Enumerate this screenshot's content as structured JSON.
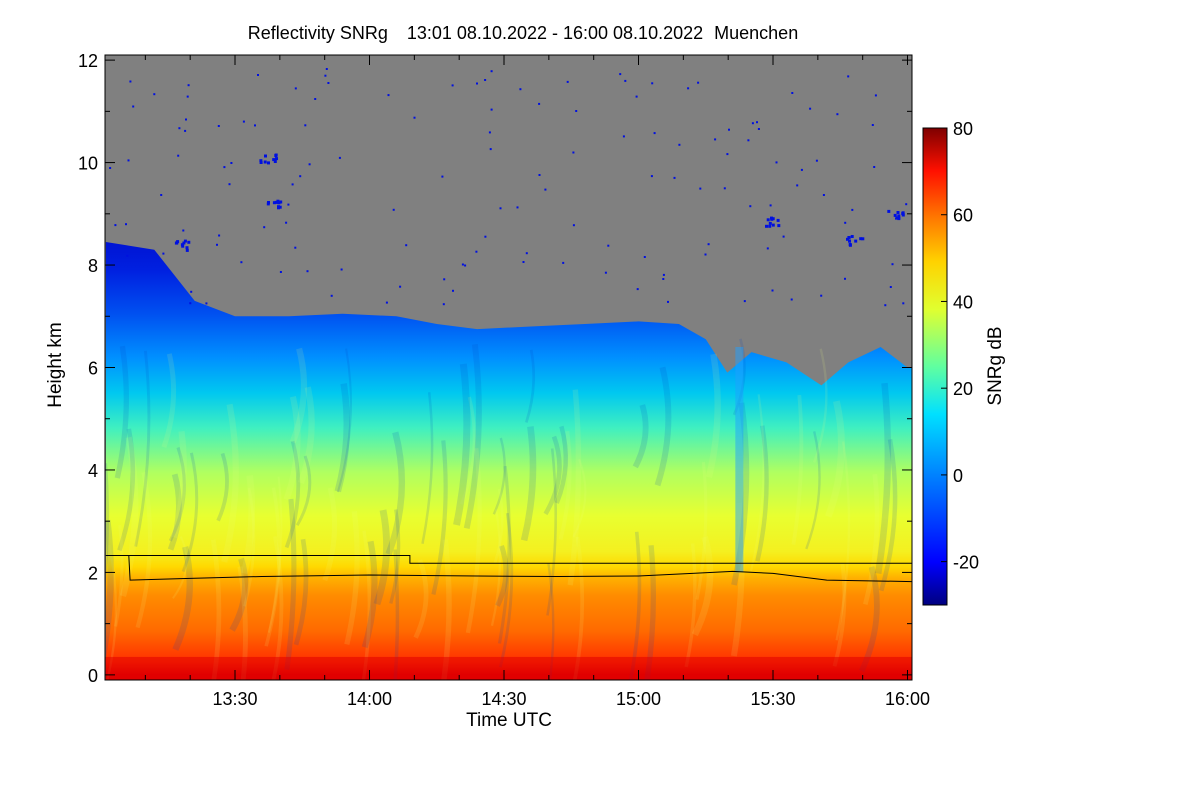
{
  "chart_data": {
    "type": "heatmap",
    "title": "Reflectivity SNRg",
    "time_range": "13:01 08.10.2022 - 16:00 08.10.2022",
    "location": "Muenchen",
    "xlabel": "Time UTC",
    "ylabel": "Height km",
    "x_tick_labels": [
      "13:30",
      "14:00",
      "14:30",
      "15:00",
      "15:30",
      "16:00"
    ],
    "x_tick_hours": [
      13.5,
      14.0,
      14.5,
      15.0,
      15.5,
      16.0
    ],
    "xlim_hours": [
      13.0167,
      16.0167
    ],
    "y_ticks": [
      0,
      2,
      4,
      6,
      8,
      10,
      12
    ],
    "ylim": [
      -0.1,
      12.1
    ],
    "colorbar": {
      "label": "SNRg dB",
      "range": [
        -30,
        80
      ],
      "ticks": [
        -20,
        0,
        20,
        40,
        60,
        80
      ]
    },
    "no_signal_color": "#808080",
    "cloud_top_km": [
      {
        "t": 13.02,
        "h": 8.45
      },
      {
        "t": 13.2,
        "h": 8.3
      },
      {
        "t": 13.35,
        "h": 7.3
      },
      {
        "t": 13.5,
        "h": 7.0
      },
      {
        "t": 13.7,
        "h": 7.0
      },
      {
        "t": 13.9,
        "h": 7.05
      },
      {
        "t": 14.1,
        "h": 7.0
      },
      {
        "t": 14.25,
        "h": 6.85
      },
      {
        "t": 14.4,
        "h": 6.75
      },
      {
        "t": 14.6,
        "h": 6.8
      },
      {
        "t": 14.8,
        "h": 6.85
      },
      {
        "t": 15.0,
        "h": 6.9
      },
      {
        "t": 15.15,
        "h": 6.85
      },
      {
        "t": 15.25,
        "h": 6.55
      },
      {
        "t": 15.33,
        "h": 5.9
      },
      {
        "t": 15.42,
        "h": 6.3
      },
      {
        "t": 15.55,
        "h": 6.1
      },
      {
        "t": 15.68,
        "h": 5.65
      },
      {
        "t": 15.78,
        "h": 6.1
      },
      {
        "t": 15.9,
        "h": 6.4
      },
      {
        "t": 16.0,
        "h": 6.0
      }
    ],
    "series": [
      {
        "name": "stepped reference line",
        "points": [
          {
            "t": 13.02,
            "h": 2.33
          },
          {
            "t": 14.15,
            "h": 2.33
          },
          {
            "t": 14.15,
            "h": 2.18
          },
          {
            "t": 16.02,
            "h": 2.18
          }
        ]
      },
      {
        "name": "melting layer height",
        "points": [
          {
            "t": 13.02,
            "h": 2.33
          },
          {
            "t": 13.105,
            "h": 2.33
          },
          {
            "t": 13.11,
            "h": 1.85
          },
          {
            "t": 13.3,
            "h": 1.88
          },
          {
            "t": 13.6,
            "h": 1.92
          },
          {
            "t": 14.0,
            "h": 1.95
          },
          {
            "t": 14.4,
            "h": 1.93
          },
          {
            "t": 14.7,
            "h": 1.92
          },
          {
            "t": 15.0,
            "h": 1.93
          },
          {
            "t": 15.2,
            "h": 1.98
          },
          {
            "t": 15.35,
            "h": 2.02
          },
          {
            "t": 15.5,
            "h": 1.98
          },
          {
            "t": 15.7,
            "h": 1.85
          },
          {
            "t": 16.02,
            "h": 1.82
          }
        ]
      }
    ]
  }
}
